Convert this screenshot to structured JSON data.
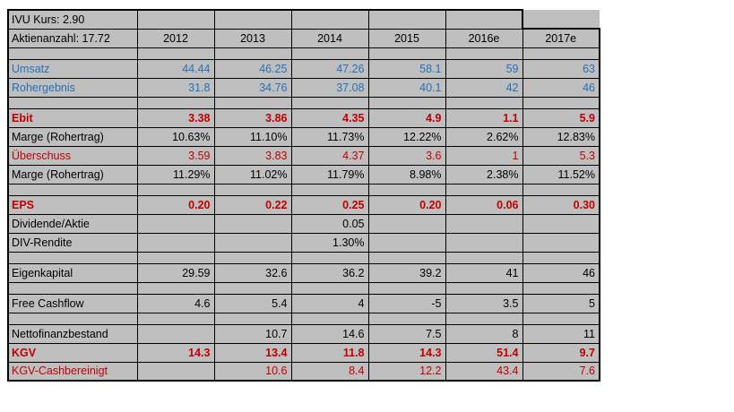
{
  "meta": {
    "kurs_label": "IVU Kurs: 2.90",
    "shares_label": "Aktienanzahl: 17.72"
  },
  "columns": [
    "2012",
    "2013",
    "2014",
    "2015",
    "2016e",
    "2017e"
  ],
  "colors": {
    "cell_bg": "#bfbfbf",
    "text_blue": "#2470bb",
    "text_red": "#c00000",
    "border": "#000000"
  },
  "rows": [
    {
      "id": "kurs",
      "type": "plain",
      "label": "IVU Kurs: 2.90",
      "values": [
        "",
        "",
        "",
        "",
        "",
        ""
      ]
    },
    {
      "id": "aktien",
      "type": "colheader",
      "label": "Aktienanzahl: 17.72",
      "values": [
        "2012",
        "2013",
        "2014",
        "2015",
        "2016e",
        "2017e"
      ]
    },
    {
      "id": "sp1",
      "type": "spacer",
      "label": "",
      "values": [
        "",
        "",
        "",
        "",
        "",
        ""
      ]
    },
    {
      "id": "umsatz",
      "type": "blue",
      "label": "Umsatz",
      "values": [
        "44.44",
        "46.25",
        "47.26",
        "58.1",
        "59",
        "63"
      ]
    },
    {
      "id": "rohergebnis",
      "type": "blue",
      "label": "Rohergebnis",
      "values": [
        "31.8",
        "34.76",
        "37.08",
        "40.1",
        "42",
        "46"
      ]
    },
    {
      "id": "sp2",
      "type": "spacer",
      "label": "",
      "values": [
        "",
        "",
        "",
        "",
        "",
        ""
      ]
    },
    {
      "id": "ebit",
      "type": "redbold",
      "label": "Ebit",
      "values": [
        "3.38",
        "3.86",
        "4.35",
        "4.9",
        "1.1",
        "5.9"
      ]
    },
    {
      "id": "marge_1",
      "type": "plain",
      "label": "Marge (Rohertrag)",
      "values": [
        "10.63%",
        "11.10%",
        "11.73%",
        "12.22%",
        "2.62%",
        "12.83%"
      ]
    },
    {
      "id": "ueberschuss",
      "type": "red",
      "label": "Überschuss",
      "values": [
        "3.59",
        "3.83",
        "4.37",
        "3.6",
        "1",
        "5.3"
      ]
    },
    {
      "id": "marge_2",
      "type": "plain",
      "label": "Marge (Rohertrag)",
      "values": [
        "11.29%",
        "11.02%",
        "11.79%",
        "8.98%",
        "2.38%",
        "11.52%"
      ]
    },
    {
      "id": "sp3",
      "type": "spacer",
      "label": "",
      "values": [
        "",
        "",
        "",
        "",
        "",
        ""
      ]
    },
    {
      "id": "eps",
      "type": "redbold",
      "label": "EPS",
      "values": [
        "0.20",
        "0.22",
        "0.25",
        "0.20",
        "0.06",
        "0.30"
      ]
    },
    {
      "id": "dividende",
      "type": "plain",
      "label": "Dividende/Aktie",
      "values": [
        "",
        "",
        "0.05",
        "",
        "",
        ""
      ]
    },
    {
      "id": "div_rendite",
      "type": "plain",
      "label": "DIV-Rendite",
      "values": [
        "",
        "",
        "1.30%",
        "",
        "",
        ""
      ]
    },
    {
      "id": "sp4",
      "type": "spacer",
      "label": "",
      "values": [
        "",
        "",
        "",
        "",
        "",
        ""
      ]
    },
    {
      "id": "eigenkapital",
      "type": "plain",
      "label": "Eigenkapital",
      "values": [
        "29.59",
        "32.6",
        "36.2",
        "39.2",
        "41",
        "46"
      ]
    },
    {
      "id": "sp5",
      "type": "spacer",
      "label": "",
      "values": [
        "",
        "",
        "",
        "",
        "",
        ""
      ]
    },
    {
      "id": "free_cashflow",
      "type": "plain",
      "label": "Free Cashflow",
      "values": [
        "4.6",
        "5.4",
        "4",
        "-5",
        "3.5",
        "5"
      ]
    },
    {
      "id": "sp6",
      "type": "spacer",
      "label": "",
      "values": [
        "",
        "",
        "",
        "",
        "",
        ""
      ]
    },
    {
      "id": "nettofinanz",
      "type": "plain",
      "label": "Nettofinanzbestand",
      "values": [
        "",
        "10.7",
        "14.6",
        "7.5",
        "8",
        "11"
      ]
    },
    {
      "id": "kgv",
      "type": "redbold",
      "label": "KGV",
      "values": [
        "14.3",
        "13.4",
        "11.8",
        "14.3",
        "51.4",
        "9.7"
      ]
    },
    {
      "id": "kgv_cash",
      "type": "red",
      "label": "KGV-Cashbereinigt",
      "values": [
        "",
        "10.6",
        "8.4",
        "12.2",
        "43.4",
        "7.6"
      ]
    }
  ]
}
